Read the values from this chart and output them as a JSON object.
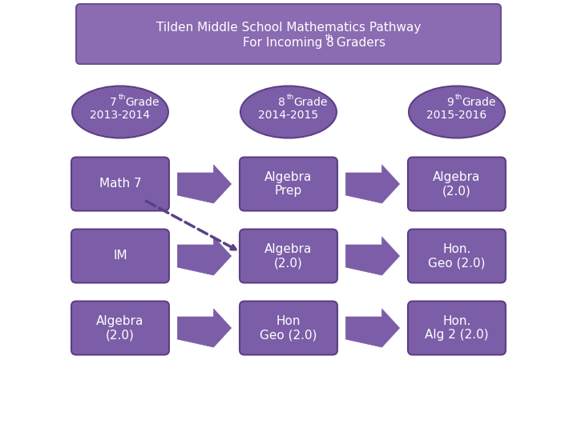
{
  "bg_color": "#ffffff",
  "purple_fill": "#7B5EA7",
  "purple_border": "#5C4084",
  "white_text": "#ffffff",
  "dark_text": "#4a4a4a",
  "title_box_fill": "#8B6BB1",
  "title_box_border": "#6B4F91",
  "title_line1": "Tilden Middle School Mathematics Pathway",
  "title_line2": "For Incoming 8",
  "title_line2_sup": "th",
  "title_line2_end": " Graders",
  "col_headers": [
    {
      "line1": "7",
      "sup": "th",
      "line2": "Grade",
      "line3": "2013-2014"
    },
    {
      "line1": "8",
      "sup": "th",
      "line2": "Grade",
      "line3": "2014-2015"
    },
    {
      "line1": "9",
      "sup": "th",
      "line2": "Grade",
      "line3": "2015-2016"
    }
  ],
  "rows": [
    [
      "Math 7",
      "Algebra\nPrep",
      "Algebra\n(2.0)"
    ],
    [
      "IM",
      "Algebra\n(2.0)",
      "Hon.\nGeo (2.0)"
    ],
    [
      "Algebra\n(2.0)",
      "Hon\nGeo (2.0)",
      "Hon.\nAlg 2 (2.0)"
    ]
  ],
  "arrow_color": "#7B5EA7",
  "dashed_arrow_color": "#5C4084"
}
